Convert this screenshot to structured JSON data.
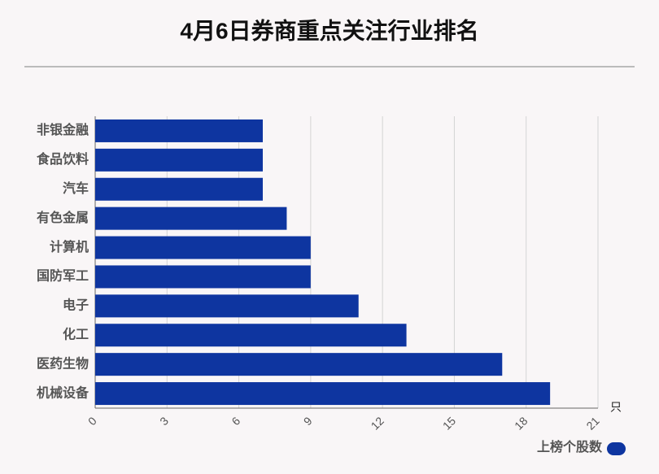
{
  "chart_data": {
    "type": "bar",
    "orientation": "horizontal",
    "title": "4月6日券商重点关注行业排名",
    "categories": [
      "非银金融",
      "食品饮料",
      "汽车",
      "有色金属",
      "计算机",
      "国防军工",
      "电子",
      "化工",
      "医药生物",
      "机械设备"
    ],
    "series": [
      {
        "name": "上榜个股数",
        "color": "#0e35a0",
        "values": [
          7,
          7,
          7,
          8,
          9,
          9,
          11,
          13,
          17,
          19
        ]
      }
    ],
    "xlabel": "只",
    "xlim": [
      0,
      21
    ],
    "xticks": [
      0,
      3,
      6,
      9,
      12,
      15,
      18,
      21
    ],
    "grid": true
  }
}
